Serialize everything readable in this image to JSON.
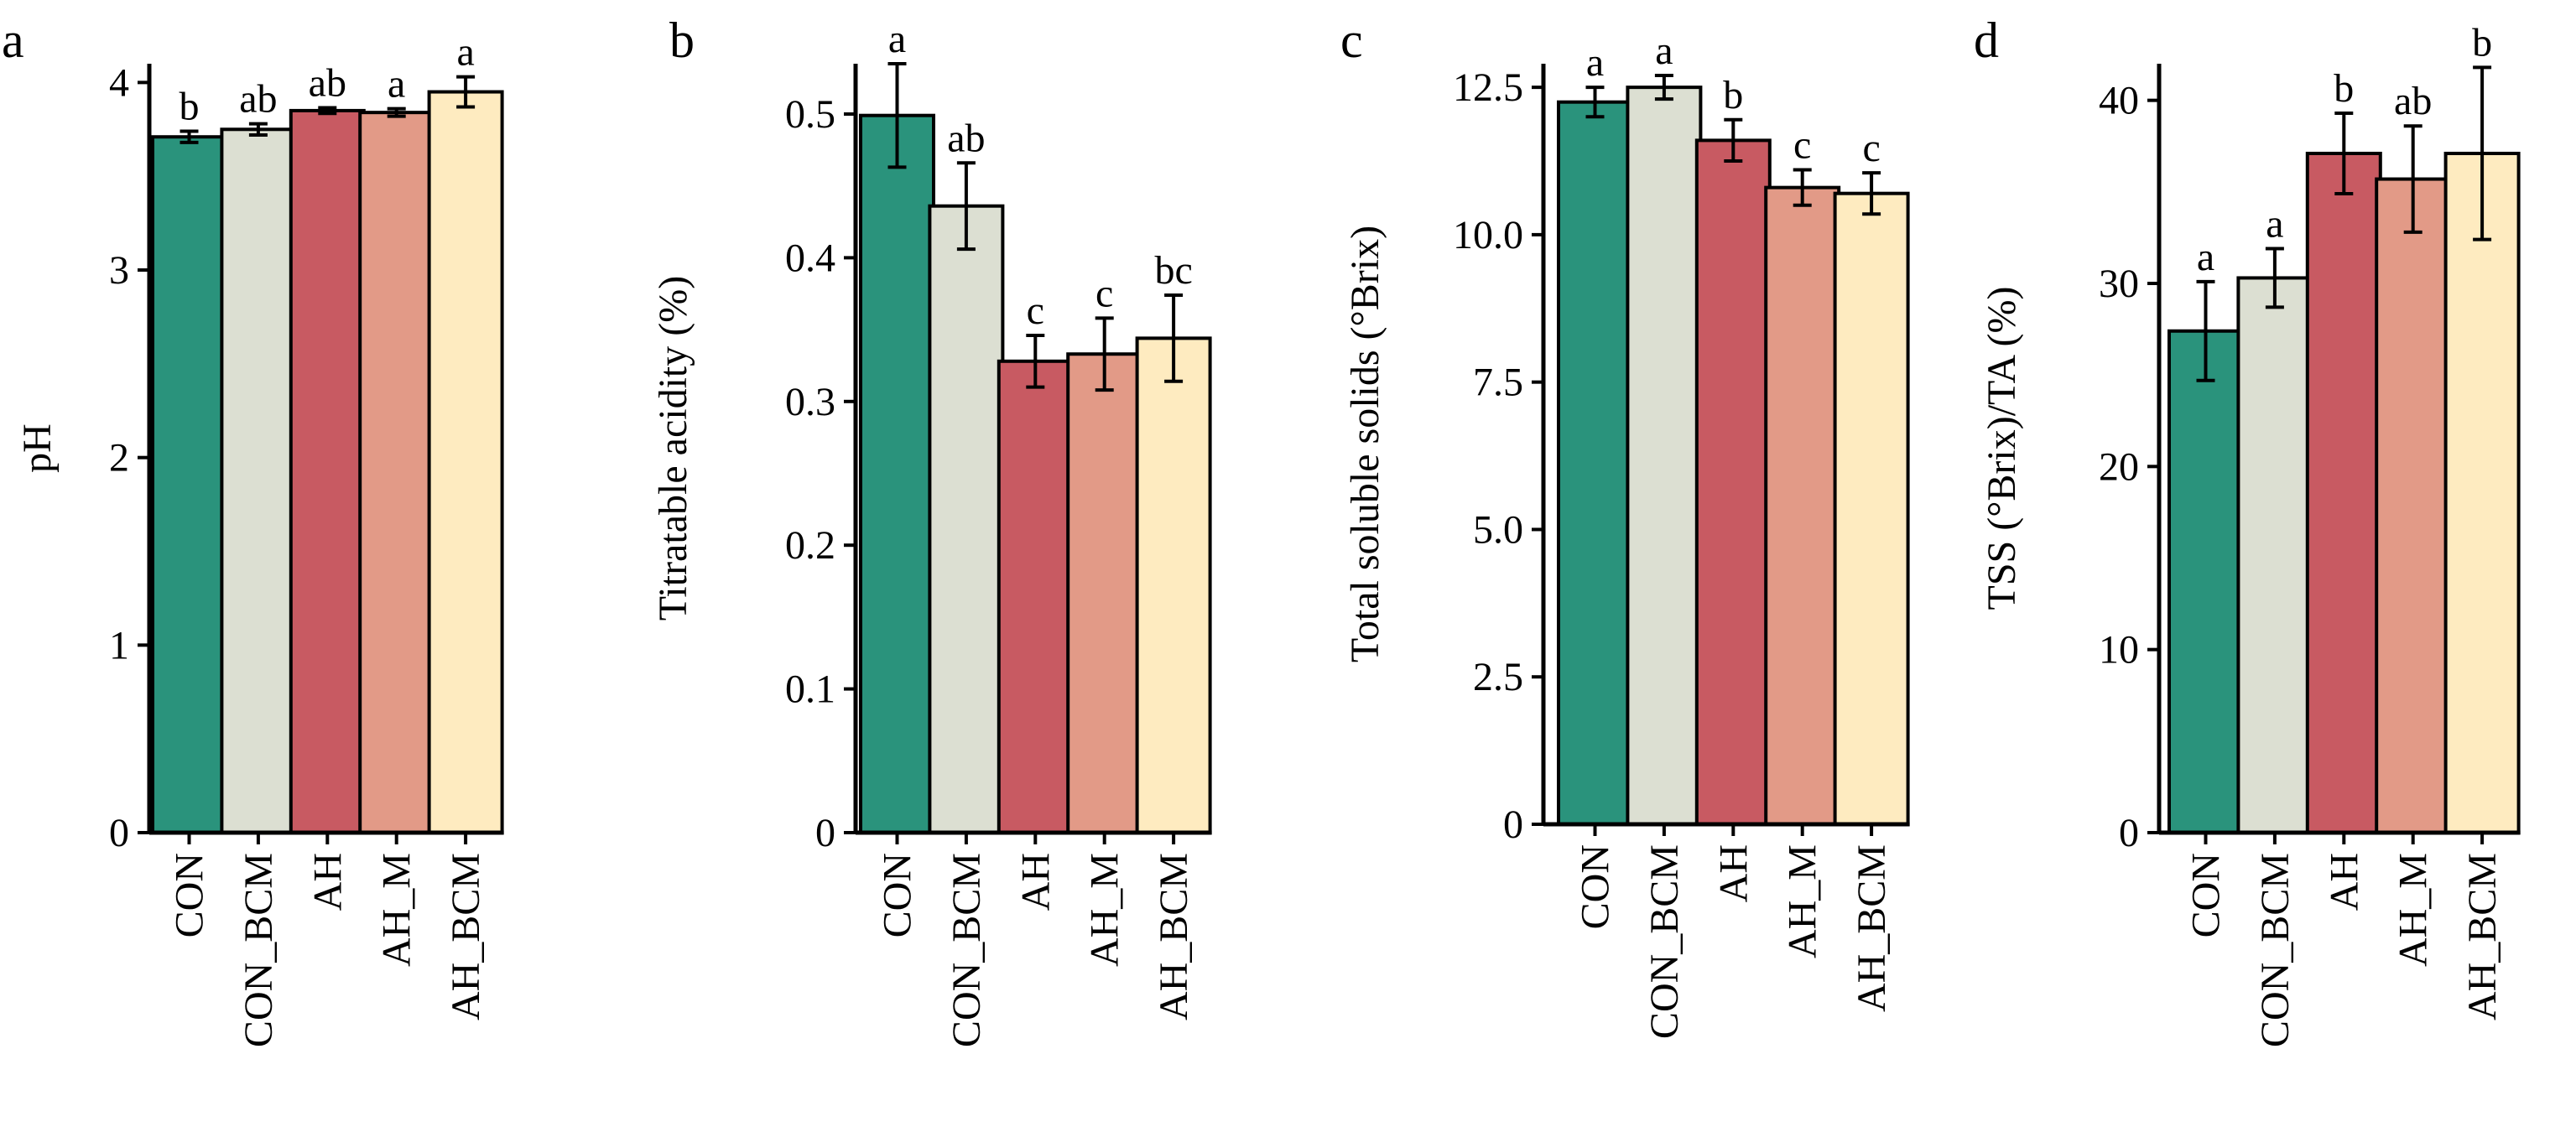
{
  "colors": {
    "CON": "#2a937c",
    "CON_BCM": "#dcdfd2",
    "AH": "#c85a62",
    "AH_M": "#e29a87",
    "AH_BCM": "#feebc0",
    "outline": "#000000"
  },
  "chart_data": [
    {
      "type": "bar",
      "panel": "a",
      "title": "",
      "xlabel": "",
      "ylabel": "pH",
      "ylim": [
        0,
        4.1
      ],
      "yticks": [
        "0",
        "1",
        "2",
        "3",
        "4"
      ],
      "categories": [
        "CON",
        "CON_BCM",
        "AH",
        "AH_M",
        "AH_BCM"
      ],
      "values": [
        3.71,
        3.75,
        3.85,
        3.84,
        3.95
      ],
      "errors": [
        0.03,
        0.03,
        0.015,
        0.02,
        0.08
      ],
      "significance": [
        "b",
        "ab",
        "ab",
        "a",
        "a"
      ]
    },
    {
      "type": "bar",
      "panel": "b",
      "title": "",
      "xlabel": "",
      "ylabel": "Titratable acidity (%)",
      "ylim": [
        0,
        0.535
      ],
      "yticks": [
        "0",
        "0.1",
        "0.2",
        "0.3",
        "0.4",
        "0.5"
      ],
      "categories": [
        "CON",
        "CON_BCM",
        "AH",
        "AH_M",
        "AH_BCM"
      ],
      "values": [
        0.499,
        0.436,
        0.328,
        0.333,
        0.344
      ],
      "errors": [
        0.036,
        0.03,
        0.018,
        0.025,
        0.03
      ],
      "significance": [
        "a",
        "ab",
        "c",
        "c",
        "bc"
      ]
    },
    {
      "type": "bar",
      "panel": "c",
      "title": "",
      "xlabel": "",
      "ylabel": "Total soluble solids (°Brix)",
      "ylim": [
        0,
        12.9
      ],
      "yticks": [
        "0",
        "2.5",
        "5.0",
        "7.5",
        "10.0",
        "12.5"
      ],
      "categories": [
        "CON",
        "CON_BCM",
        "AH",
        "AH_M",
        "AH_BCM"
      ],
      "values": [
        12.25,
        12.5,
        11.6,
        10.8,
        10.7
      ],
      "errors": [
        0.25,
        0.2,
        0.35,
        0.3,
        0.35
      ],
      "significance": [
        "a",
        "a",
        "b",
        "c",
        "c"
      ]
    },
    {
      "type": "bar",
      "panel": "d",
      "title": "",
      "xlabel": "",
      "ylabel": "TSS (°Brix)/TA (%)",
      "ylim": [
        0,
        42
      ],
      "yticks": [
        "0",
        "10",
        "20",
        "30",
        "40"
      ],
      "categories": [
        "CON",
        "CON_BCM",
        "AH",
        "AH_M",
        "AH_BCM"
      ],
      "values": [
        27.4,
        30.3,
        37.1,
        35.7,
        37.1
      ],
      "errors": [
        2.7,
        1.6,
        2.2,
        2.9,
        4.7
      ],
      "significance": [
        "a",
        "a",
        "b",
        "ab",
        "b"
      ]
    }
  ]
}
